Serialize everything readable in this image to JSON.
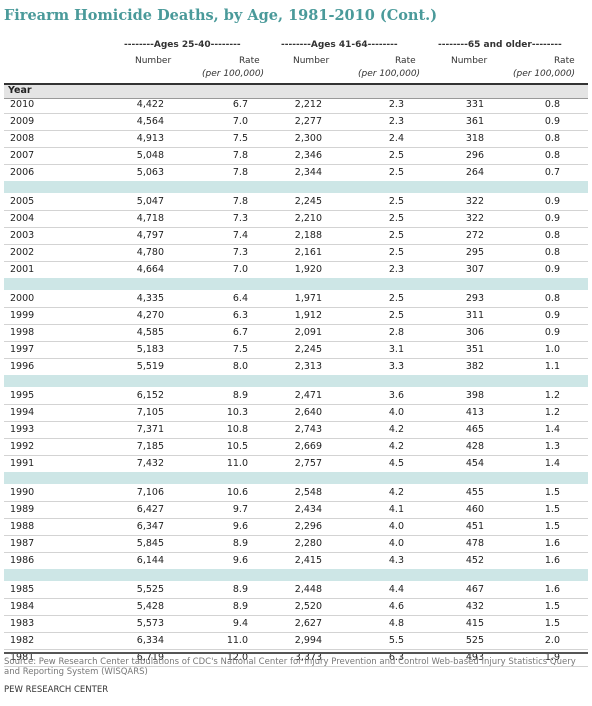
{
  "title": "Firearm Homicide Deaths, by Age, 1981-2010 (Cont.)",
  "groups": [
    "--------Ages 25-40--------",
    "--------Ages 41-64--------",
    "--------65 and older--------"
  ],
  "col_number": "Number",
  "col_rate": "Rate",
  "col_rate_unit": "(per 100,000)",
  "year_label": "Year",
  "source": "Source: Pew Research Center tabulations of CDC's National Center for Injury Prevention and Control Web-based Injury Statistics Query and Reporting System (WISQARS)",
  "footer": "PEW RESEARCH CENTER",
  "chart_data": {
    "type": "table",
    "title": "Firearm Homicide Deaths, by Age, 1981-2010 (Cont.)",
    "columns": [
      "Year",
      "Ages 25-40 Number",
      "Ages 25-40 Rate (per 100,000)",
      "Ages 41-64 Number",
      "Ages 41-64 Rate (per 100,000)",
      "65 and older Number",
      "65 and older Rate (per 100,000)"
    ],
    "rows": [
      [
        "2010",
        "4,422",
        "6.7",
        "2,212",
        "2.3",
        "331",
        "0.8"
      ],
      [
        "2009",
        "4,564",
        "7.0",
        "2,277",
        "2.3",
        "361",
        "0.9"
      ],
      [
        "2008",
        "4,913",
        "7.5",
        "2,300",
        "2.4",
        "318",
        "0.8"
      ],
      [
        "2007",
        "5,048",
        "7.8",
        "2,346",
        "2.5",
        "296",
        "0.8"
      ],
      [
        "2006",
        "5,063",
        "7.8",
        "2,344",
        "2.5",
        "264",
        "0.7"
      ],
      [
        "2005",
        "5,047",
        "7.8",
        "2,245",
        "2.5",
        "322",
        "0.9"
      ],
      [
        "2004",
        "4,718",
        "7.3",
        "2,210",
        "2.5",
        "322",
        "0.9"
      ],
      [
        "2003",
        "4,797",
        "7.4",
        "2,188",
        "2.5",
        "272",
        "0.8"
      ],
      [
        "2002",
        "4,780",
        "7.3",
        "2,161",
        "2.5",
        "295",
        "0.8"
      ],
      [
        "2001",
        "4,664",
        "7.0",
        "1,920",
        "2.3",
        "307",
        "0.9"
      ],
      [
        "2000",
        "4,335",
        "6.4",
        "1,971",
        "2.5",
        "293",
        "0.8"
      ],
      [
        "1999",
        "4,270",
        "6.3",
        "1,912",
        "2.5",
        "311",
        "0.9"
      ],
      [
        "1998",
        "4,585",
        "6.7",
        "2,091",
        "2.8",
        "306",
        "0.9"
      ],
      [
        "1997",
        "5,183",
        "7.5",
        "2,245",
        "3.1",
        "351",
        "1.0"
      ],
      [
        "1996",
        "5,519",
        "8.0",
        "2,313",
        "3.3",
        "382",
        "1.1"
      ],
      [
        "1995",
        "6,152",
        "8.9",
        "2,471",
        "3.6",
        "398",
        "1.2"
      ],
      [
        "1994",
        "7,105",
        "10.3",
        "2,640",
        "4.0",
        "413",
        "1.2"
      ],
      [
        "1993",
        "7,371",
        "10.8",
        "2,743",
        "4.2",
        "465",
        "1.4"
      ],
      [
        "1992",
        "7,185",
        "10.5",
        "2,669",
        "4.2",
        "428",
        "1.3"
      ],
      [
        "1991",
        "7,432",
        "11.0",
        "2,757",
        "4.5",
        "454",
        "1.4"
      ],
      [
        "1990",
        "7,106",
        "10.6",
        "2,548",
        "4.2",
        "455",
        "1.5"
      ],
      [
        "1989",
        "6,427",
        "9.7",
        "2,434",
        "4.1",
        "460",
        "1.5"
      ],
      [
        "1988",
        "6,347",
        "9.6",
        "2,296",
        "4.0",
        "451",
        "1.5"
      ],
      [
        "1987",
        "5,845",
        "8.9",
        "2,280",
        "4.0",
        "478",
        "1.6"
      ],
      [
        "1986",
        "6,144",
        "9.6",
        "2,415",
        "4.3",
        "452",
        "1.6"
      ],
      [
        "1985",
        "5,525",
        "8.9",
        "2,448",
        "4.4",
        "467",
        "1.6"
      ],
      [
        "1984",
        "5,428",
        "8.9",
        "2,520",
        "4.6",
        "432",
        "1.5"
      ],
      [
        "1983",
        "5,573",
        "9.4",
        "2,627",
        "4.8",
        "415",
        "1.5"
      ],
      [
        "1982",
        "6,334",
        "11.0",
        "2,994",
        "5.5",
        "525",
        "2.0"
      ],
      [
        "1981",
        "6,719",
        "12.0",
        "3,373",
        "6.3",
        "493",
        "1.9"
      ]
    ]
  }
}
